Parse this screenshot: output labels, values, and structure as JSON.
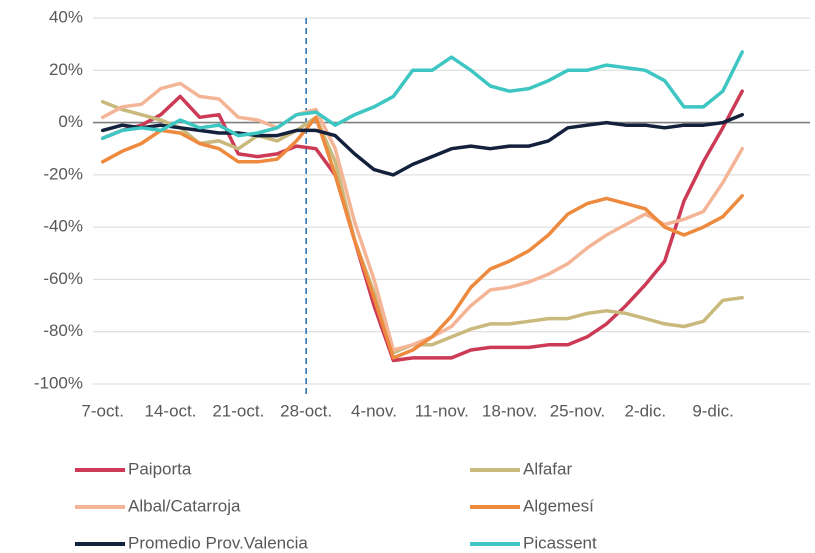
{
  "chart_data": {
    "type": "line",
    "x": [
      0,
      2,
      4,
      6,
      8,
      10,
      12,
      14,
      16,
      18,
      20,
      22,
      24,
      26,
      28,
      30,
      32,
      34,
      36,
      38,
      40,
      42,
      44,
      46,
      48,
      50,
      52,
      54,
      56,
      58,
      60,
      62,
      64,
      66
    ],
    "xlim": [
      -1,
      73
    ],
    "xticks": [
      {
        "value": 0,
        "label": "7-oct."
      },
      {
        "value": 7,
        "label": "14-oct."
      },
      {
        "value": 14,
        "label": "21-oct."
      },
      {
        "value": 21,
        "label": "28-oct."
      },
      {
        "value": 28,
        "label": "4-nov."
      },
      {
        "value": 35,
        "label": "11-nov."
      },
      {
        "value": 42,
        "label": "18-nov."
      },
      {
        "value": 49,
        "label": "25-nov."
      },
      {
        "value": 56,
        "label": "2-dic."
      },
      {
        "value": 63,
        "label": "9-dic."
      }
    ],
    "ylim": [
      -100,
      40
    ],
    "yticks": [
      {
        "value": -100,
        "label": "-100%"
      },
      {
        "value": -80,
        "label": "-80%"
      },
      {
        "value": -60,
        "label": "-60%"
      },
      {
        "value": -40,
        "label": "-40%"
      },
      {
        "value": -20,
        "label": "-20%"
      },
      {
        "value": 0,
        "label": "0%"
      },
      {
        "value": 20,
        "label": "20%"
      },
      {
        "value": 40,
        "label": "40%"
      }
    ],
    "grid": true,
    "vline_x": 21,
    "legend": "bottom",
    "series": [
      {
        "name": "Paiporta",
        "color": "#cc3a55",
        "values": [
          -6,
          -3,
          -1,
          3,
          10,
          2,
          3,
          -12,
          -13,
          -12,
          -9,
          -10,
          -20,
          -45,
          -70,
          -91,
          -90,
          -90,
          -90,
          -87,
          -86,
          -86,
          -86,
          -85,
          -85,
          -82,
          -77,
          -70,
          -62,
          -53,
          -30,
          -15,
          -2,
          12
        ]
      },
      {
        "name": "Alfafar",
        "color": "#c9b97c",
        "values": [
          8,
          5,
          3,
          1,
          -2,
          -8,
          -7,
          -10,
          -5,
          -7,
          -3,
          2,
          -15,
          -45,
          -65,
          -88,
          -85,
          -85,
          -82,
          -79,
          -77,
          -77,
          -76,
          -75,
          -75,
          -73,
          -72,
          -73,
          -75,
          -77,
          -78,
          -76,
          -68,
          -67
        ]
      },
      {
        "name": "Albal/Catarroja",
        "color": "#f4b597",
        "values": [
          2,
          6,
          7,
          13,
          15,
          10,
          9,
          2,
          1,
          -2,
          3,
          5,
          -10,
          -38,
          -60,
          -87,
          -85,
          -82,
          -78,
          -70,
          -64,
          -63,
          -61,
          -58,
          -54,
          -48,
          -43,
          -39,
          -35,
          -39,
          -37,
          -34,
          -23,
          -10
        ]
      },
      {
        "name": "Algemesí",
        "color": "#ee8a3e",
        "values": [
          -15,
          -11,
          -8,
          -3,
          -4,
          -8,
          -10,
          -15,
          -15,
          -14,
          -7,
          2,
          -20,
          -45,
          -67,
          -90,
          -87,
          -82,
          -74,
          -63,
          -56,
          -53,
          -49,
          -43,
          -35,
          -31,
          -29,
          -31,
          -33,
          -40,
          -43,
          -40,
          -36,
          -28
        ]
      },
      {
        "name": "Promedio Prov.Valencia",
        "color": "#14213d",
        "values": [
          -3,
          -1,
          -2,
          -1,
          -2,
          -3,
          -4,
          -4,
          -5,
          -5,
          -3,
          -3,
          -5,
          -12,
          -18,
          -20,
          -16,
          -13,
          -10,
          -9,
          -10,
          -9,
          -9,
          -7,
          -2,
          -1,
          0,
          -1,
          -1,
          -2,
          -1,
          -1,
          0,
          3
        ]
      },
      {
        "name": "Picassent",
        "color": "#3ec6c2",
        "values": [
          -6,
          -3,
          -2,
          -3,
          1,
          -2,
          -1,
          -5,
          -4,
          -2,
          3,
          4,
          -1,
          3,
          6,
          10,
          20,
          20,
          25,
          20,
          14,
          12,
          13,
          16,
          20,
          20,
          22,
          21,
          20,
          16,
          6,
          6,
          12,
          27
        ]
      }
    ]
  }
}
